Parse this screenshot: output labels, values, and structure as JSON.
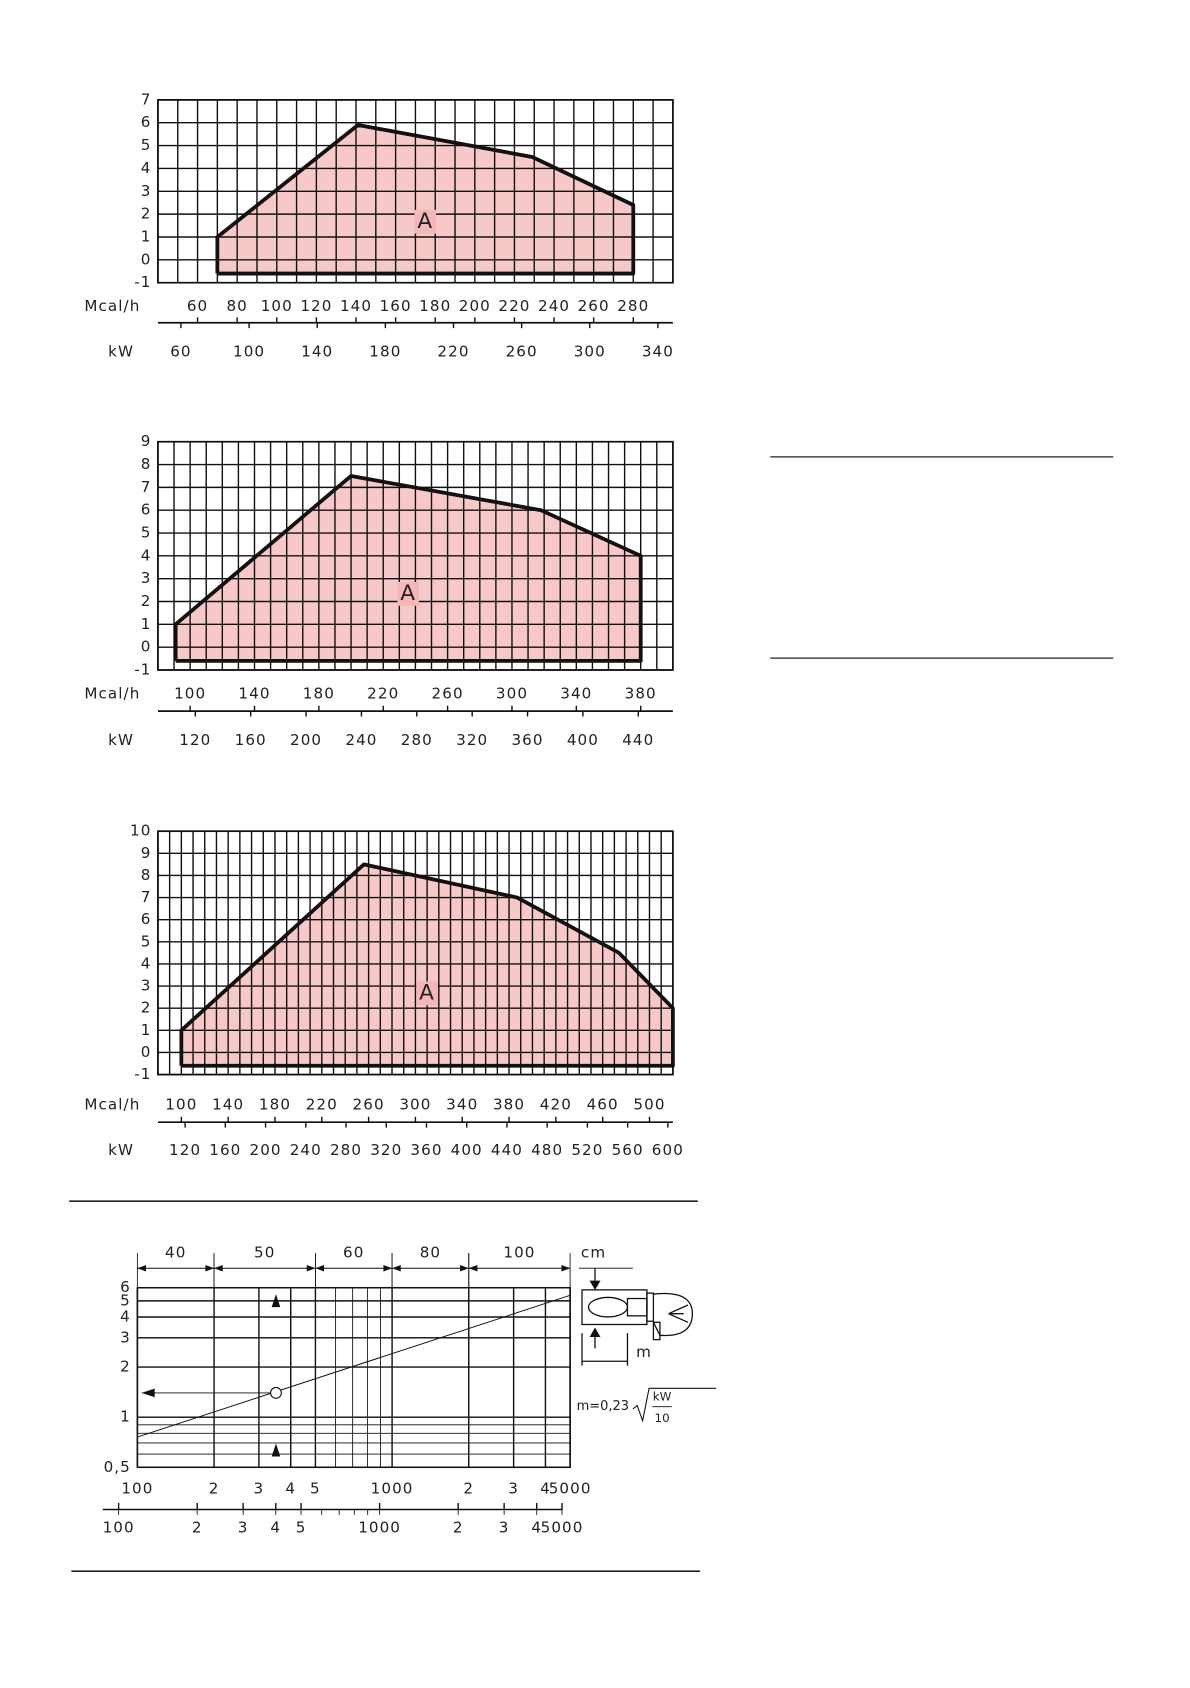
{
  "chart_data": [
    {
      "type": "area",
      "x_label": "Mcal/h",
      "x2_label": "kW",
      "annotation": "A",
      "xlim": [
        40,
        300
      ],
      "xticks": [
        60,
        80,
        100,
        120,
        140,
        160,
        180,
        200,
        220,
        240,
        260,
        280
      ],
      "x2lim": [
        46.5,
        348.8
      ],
      "x2ticks": [
        60,
        100,
        140,
        180,
        220,
        260,
        300,
        340
      ],
      "ylim": [
        -1,
        7
      ],
      "yticks": [
        -1,
        0,
        1,
        2,
        3,
        4,
        5,
        6,
        7
      ],
      "xgrid_step": 10,
      "grid": true,
      "x": [
        70,
        70,
        141,
        229,
        280,
        280
      ],
      "y": [
        -0.6,
        1,
        5.9,
        4.5,
        2.4,
        -0.6
      ],
      "color": "#f4b6b6"
    },
    {
      "type": "area",
      "x_label": "Mcal/h",
      "x2_label": "kW",
      "annotation": "A",
      "xlim": [
        80,
        400
      ],
      "xticks": [
        100,
        140,
        180,
        220,
        260,
        300,
        340,
        380
      ],
      "x2lim": [
        93,
        465
      ],
      "x2ticks": [
        120,
        160,
        200,
        240,
        280,
        320,
        360,
        400,
        440
      ],
      "ylim": [
        -1,
        9
      ],
      "yticks": [
        -1,
        0,
        1,
        2,
        3,
        4,
        5,
        6,
        7,
        8,
        9
      ],
      "xgrid_step": 10,
      "grid": true,
      "x": [
        91,
        91,
        200,
        318,
        380,
        380
      ],
      "y": [
        -0.6,
        1,
        7.5,
        6,
        4,
        -0.6
      ],
      "color": "#f4b6b6"
    },
    {
      "type": "area",
      "x_label": "Mcal/h",
      "x2_label": "kW",
      "annotation": "A",
      "xlim": [
        80,
        520
      ],
      "xticks": [
        100,
        140,
        180,
        220,
        260,
        300,
        340,
        380,
        420,
        460,
        500
      ],
      "x2lim": [
        93,
        605
      ],
      "x2ticks": [
        120,
        160,
        200,
        240,
        280,
        320,
        360,
        400,
        440,
        480,
        520,
        560,
        600
      ],
      "ylim": [
        -1,
        10
      ],
      "yticks": [
        -1,
        0,
        1,
        2,
        3,
        4,
        5,
        6,
        7,
        8,
        9,
        10
      ],
      "xgrid_step": 10,
      "grid": true,
      "x": [
        100,
        100,
        256,
        387,
        474,
        520,
        520
      ],
      "y": [
        -0.6,
        1,
        8.5,
        7,
        4.5,
        2,
        -0.6
      ],
      "color": "#f4b6b6"
    },
    {
      "type": "line",
      "log_x": true,
      "log_y": true,
      "xlim": [
        100,
        5000
      ],
      "xticks": [
        {
          "value": 100,
          "label": "100"
        },
        {
          "value": 200,
          "label": "2"
        },
        {
          "value": 300,
          "label": "3"
        },
        {
          "value": 400,
          "label": "4"
        },
        {
          "value": 500,
          "label": "5"
        },
        {
          "value": 1000,
          "label": "1000"
        },
        {
          "value": 2000,
          "label": "2"
        },
        {
          "value": 3000,
          "label": "3"
        },
        {
          "value": 4000,
          "label": "4"
        },
        {
          "value": 5000,
          "label": "5000"
        }
      ],
      "x2lim": [
        118,
        5370
      ],
      "x2ticks": [
        {
          "value": 100,
          "label": "100"
        },
        {
          "value": 200,
          "label": "2"
        },
        {
          "value": 300,
          "label": "3"
        },
        {
          "value": 400,
          "label": "4"
        },
        {
          "value": 500,
          "label": "5"
        },
        {
          "value": 1000,
          "label": "1000"
        },
        {
          "value": 2000,
          "label": "2"
        },
        {
          "value": 3000,
          "label": "3"
        },
        {
          "value": 4000,
          "label": "4"
        },
        {
          "value": 5000,
          "label": "5000"
        }
      ],
      "ylim": [
        0.5,
        6
      ],
      "yticks": [
        {
          "value": 0.5,
          "label": "0,5"
        },
        1,
        2,
        3,
        4,
        5,
        6
      ],
      "zones": [
        {
          "from": 100,
          "to": 200,
          "label": 40
        },
        {
          "from": 200,
          "to": 500,
          "label": 50
        },
        {
          "from": 500,
          "to": 1000,
          "label": 60
        },
        {
          "from": 1000,
          "to": 2000,
          "label": 80
        },
        {
          "from": 2000,
          "to": 5000,
          "label": 100
        }
      ],
      "zone_unit": "cm",
      "x": [
        100,
        5000
      ],
      "y": [
        0.76,
        5.4
      ],
      "marker": {
        "x": 350,
        "y": 1.4
      },
      "dim_label": "m",
      "formula": {
        "lhs": "m=0,23",
        "num": "kW",
        "den": "10"
      }
    }
  ]
}
